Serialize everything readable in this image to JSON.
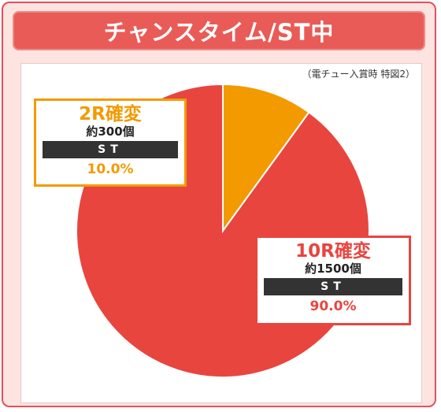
{
  "title": "チャンスタイム/ST中",
  "note": "（電チュー入賞時 特図2）",
  "colors": {
    "large": "#e8453f",
    "small": "#f29a00"
  },
  "chart_data": {
    "type": "pie",
    "slices": [
      {
        "label": "2R確変",
        "payout": "約300個",
        "mode": "ST",
        "value": 10.0,
        "percent_label": "10.0%"
      },
      {
        "label": "10R確変",
        "payout": "約1500個",
        "mode": "ST",
        "value": 90.0,
        "percent_label": "90.0%"
      }
    ]
  }
}
